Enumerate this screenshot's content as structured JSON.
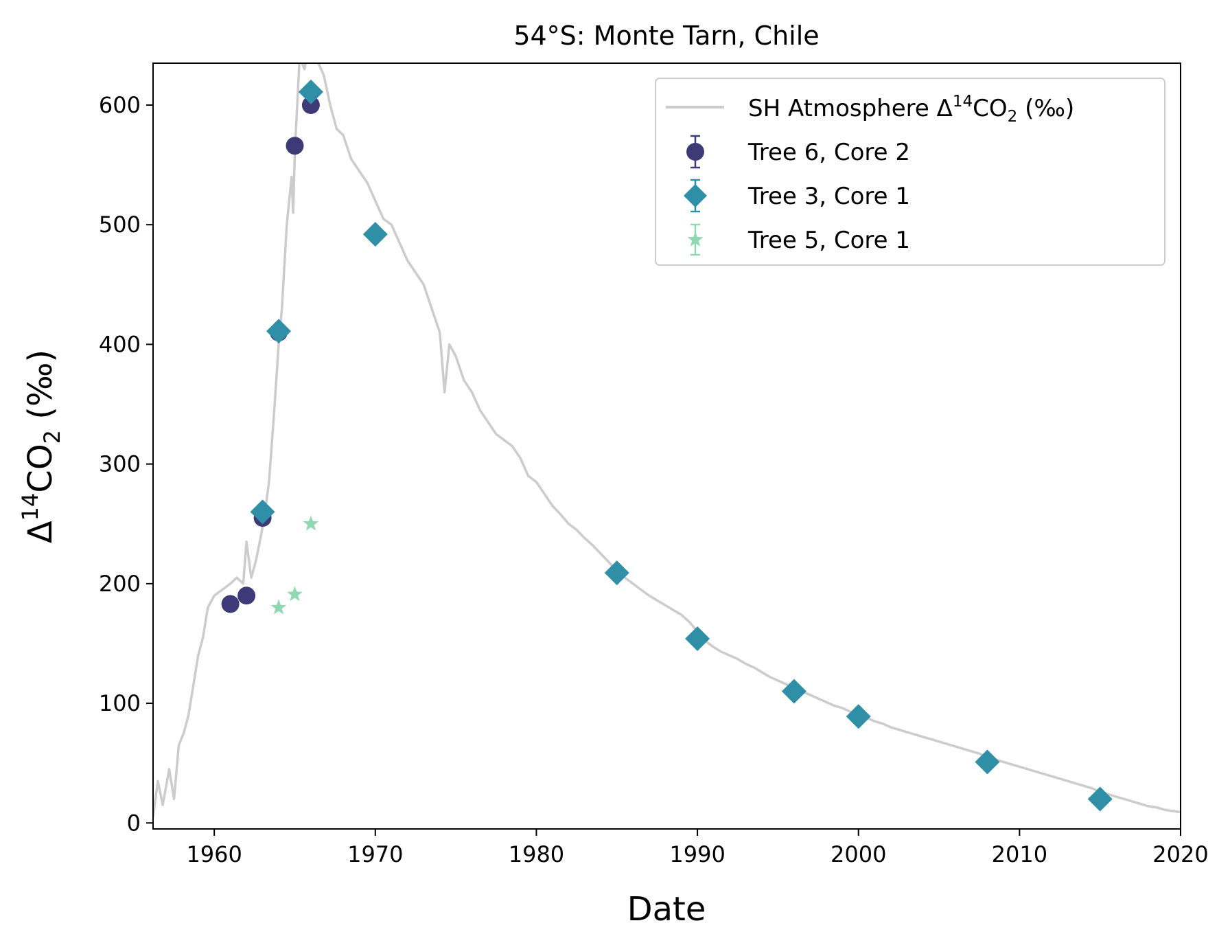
{
  "chart_data": {
    "type": "scatter",
    "title": "54°S: Monte Tarn, Chile",
    "xlabel": "Date",
    "ylabel_parts": {
      "main": "Δ",
      "sup": "14",
      "mid": "CO",
      "sub": "2",
      "unit": " (‰)"
    },
    "xlim": [
      1956.2,
      2020
    ],
    "ylim": [
      -5,
      635
    ],
    "xticks": [
      1960,
      1970,
      1980,
      1990,
      2000,
      2010,
      2020
    ],
    "yticks": [
      0,
      100,
      200,
      300,
      400,
      500,
      600
    ],
    "grid": false,
    "legend_position": "top-right",
    "atmosphere": {
      "label_parts": {
        "main": "SH Atmosphere Δ",
        "sup": "14",
        "mid": "CO",
        "sub": "2",
        "unit": " (‰)"
      },
      "color": "#cccccc",
      "points": [
        [
          1956.2,
          5
        ],
        [
          1956.5,
          35
        ],
        [
          1956.8,
          15
        ],
        [
          1957.2,
          45
        ],
        [
          1957.5,
          20
        ],
        [
          1957.8,
          65
        ],
        [
          1958.1,
          75
        ],
        [
          1958.4,
          90
        ],
        [
          1958.7,
          115
        ],
        [
          1959.0,
          140
        ],
        [
          1959.3,
          155
        ],
        [
          1959.6,
          180
        ],
        [
          1960.0,
          190
        ],
        [
          1960.5,
          195
        ],
        [
          1961.0,
          200
        ],
        [
          1961.4,
          205
        ],
        [
          1961.8,
          200
        ],
        [
          1962.0,
          235
        ],
        [
          1962.3,
          205
        ],
        [
          1962.6,
          220
        ],
        [
          1962.9,
          240
        ],
        [
          1963.1,
          255
        ],
        [
          1963.4,
          285
        ],
        [
          1963.7,
          340
        ],
        [
          1964.0,
          400
        ],
        [
          1964.2,
          430
        ],
        [
          1964.5,
          500
        ],
        [
          1964.8,
          540
        ],
        [
          1964.9,
          510
        ],
        [
          1965.0,
          560
        ],
        [
          1965.3,
          640
        ],
        [
          1965.6,
          630
        ],
        [
          1965.9,
          650
        ],
        [
          1966.3,
          640
        ],
        [
          1966.8,
          625
        ],
        [
          1967.2,
          600
        ],
        [
          1967.6,
          580
        ],
        [
          1968.0,
          575
        ],
        [
          1968.5,
          555
        ],
        [
          1969.0,
          545
        ],
        [
          1969.5,
          535
        ],
        [
          1970.0,
          520
        ],
        [
          1970.5,
          505
        ],
        [
          1971.0,
          500
        ],
        [
          1971.5,
          485
        ],
        [
          1972.0,
          470
        ],
        [
          1972.5,
          460
        ],
        [
          1973.0,
          450
        ],
        [
          1973.5,
          430
        ],
        [
          1974.0,
          410
        ],
        [
          1974.3,
          360
        ],
        [
          1974.6,
          400
        ],
        [
          1975.0,
          390
        ],
        [
          1975.5,
          370
        ],
        [
          1976.0,
          360
        ],
        [
          1976.5,
          345
        ],
        [
          1977.0,
          335
        ],
        [
          1977.5,
          325
        ],
        [
          1978.0,
          320
        ],
        [
          1978.5,
          315
        ],
        [
          1979.0,
          305
        ],
        [
          1979.5,
          290
        ],
        [
          1980.0,
          285
        ],
        [
          1980.5,
          275
        ],
        [
          1981.0,
          265
        ],
        [
          1981.5,
          258
        ],
        [
          1982.0,
          250
        ],
        [
          1982.5,
          245
        ],
        [
          1983.0,
          238
        ],
        [
          1983.5,
          232
        ],
        [
          1984.0,
          225
        ],
        [
          1984.5,
          218
        ],
        [
          1985.0,
          210
        ],
        [
          1985.5,
          205
        ],
        [
          1986.0,
          200
        ],
        [
          1986.5,
          195
        ],
        [
          1987.0,
          190
        ],
        [
          1987.5,
          186
        ],
        [
          1988.0,
          182
        ],
        [
          1988.5,
          178
        ],
        [
          1989.0,
          174
        ],
        [
          1989.5,
          168
        ],
        [
          1990.0,
          160
        ],
        [
          1990.5,
          152
        ],
        [
          1991.0,
          147
        ],
        [
          1991.5,
          143
        ],
        [
          1992.0,
          140
        ],
        [
          1992.5,
          137
        ],
        [
          1993.0,
          133
        ],
        [
          1993.5,
          130
        ],
        [
          1994.0,
          126
        ],
        [
          1994.5,
          122
        ],
        [
          1995.0,
          119
        ],
        [
          1995.5,
          116
        ],
        [
          1996.0,
          113
        ],
        [
          1996.5,
          110
        ],
        [
          1997.0,
          107
        ],
        [
          1997.5,
          104
        ],
        [
          1998.0,
          101
        ],
        [
          1998.5,
          98
        ],
        [
          1999.0,
          96
        ],
        [
          1999.5,
          93
        ],
        [
          2000.0,
          90
        ],
        [
          2000.5,
          88
        ],
        [
          2001.0,
          85
        ],
        [
          2001.5,
          83
        ],
        [
          2002.0,
          80
        ],
        [
          2002.5,
          78
        ],
        [
          2003.0,
          76
        ],
        [
          2003.5,
          74
        ],
        [
          2004.0,
          72
        ],
        [
          2004.5,
          70
        ],
        [
          2005.0,
          68
        ],
        [
          2005.5,
          66
        ],
        [
          2006.0,
          64
        ],
        [
          2006.5,
          62
        ],
        [
          2007.0,
          60
        ],
        [
          2007.5,
          58
        ],
        [
          2008.0,
          55
        ],
        [
          2008.5,
          53
        ],
        [
          2009.0,
          51
        ],
        [
          2009.5,
          49
        ],
        [
          2010.0,
          47
        ],
        [
          2010.5,
          45
        ],
        [
          2011.0,
          43
        ],
        [
          2011.5,
          41
        ],
        [
          2012.0,
          39
        ],
        [
          2012.5,
          37
        ],
        [
          2013.0,
          35
        ],
        [
          2013.5,
          33
        ],
        [
          2014.0,
          31
        ],
        [
          2014.5,
          29
        ],
        [
          2015.0,
          26
        ],
        [
          2015.5,
          24
        ],
        [
          2016.0,
          22
        ],
        [
          2016.5,
          20
        ],
        [
          2017.0,
          18
        ],
        [
          2017.5,
          16
        ],
        [
          2018.0,
          14
        ],
        [
          2018.5,
          13
        ],
        [
          2019.0,
          11
        ],
        [
          2019.5,
          10
        ],
        [
          2020.0,
          9
        ]
      ]
    },
    "series": [
      {
        "name": "Tree 6, Core 2",
        "marker": "circle",
        "color": "#3e3a78",
        "x": [
          1961,
          1962,
          1963,
          1964,
          1965,
          1966
        ],
        "y": [
          183,
          190,
          255,
          410,
          566,
          600
        ]
      },
      {
        "name": "Tree 3, Core 1",
        "marker": "diamond",
        "color": "#2f8fa6",
        "x": [
          1963,
          1964,
          1966,
          1970,
          1985,
          1990,
          1996,
          2000,
          2008,
          2015
        ],
        "y": [
          260,
          411,
          611,
          492,
          209,
          154,
          110,
          89,
          51,
          20
        ]
      },
      {
        "name": "Tree 5, Core 1",
        "marker": "star",
        "color": "#8ed8b2",
        "x": [
          1964,
          1965,
          1966
        ],
        "y": [
          180,
          191,
          250
        ]
      }
    ]
  }
}
